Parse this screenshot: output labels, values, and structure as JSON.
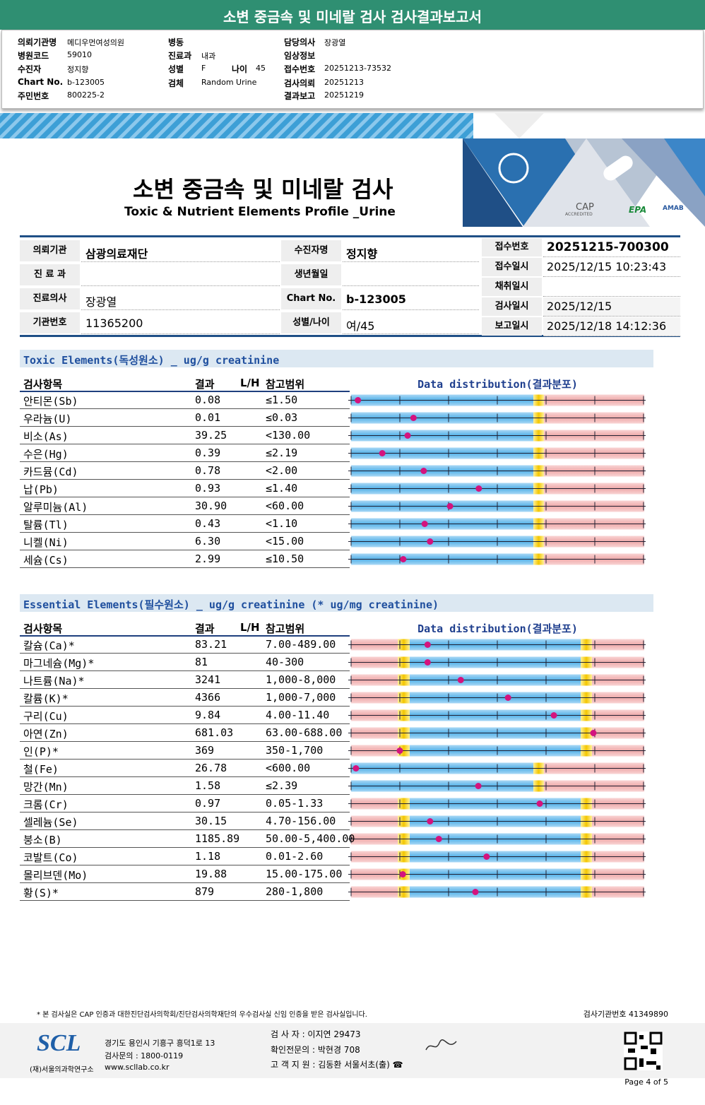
{
  "header": {
    "title": "소변 중금속 및 미네랄 검사 검사결과보고서"
  },
  "patient_info": {
    "columns": [
      [
        {
          "label": "의뢰기관명",
          "value": "메디우먼여성의원"
        },
        {
          "label": "병원코드",
          "value": "59010"
        },
        {
          "label": "수진자",
          "value": "정지향"
        },
        {
          "label": "Chart No.",
          "value": "b-123005"
        },
        {
          "label": "주민번호",
          "value": "800225-2"
        }
      ],
      [
        {
          "label": "병동"
        },
        {
          "label": "진료과",
          "value": "내과"
        },
        {
          "label": "성별",
          "value": "F"
        },
        {
          "label": "검체",
          "value": "Random Urine"
        }
      ],
      [
        {
          "label": "담당의사",
          "value": "장광열"
        },
        {
          "label": "임상정보"
        },
        {
          "label": "접수번호",
          "value": "20251213-73532"
        },
        {
          "label": "검사의뢰",
          "value": "20251213"
        },
        {
          "label": "결과보고",
          "value": "20251219"
        }
      ]
    ],
    "age": {
      "label": "나이",
      "value": "45"
    }
  },
  "report": {
    "title": "소변 중금속 및 미네랄 검사",
    "subtitle": "Toxic & Nutrient Elements Profile _Urine",
    "logos": [
      "CAP",
      "ACCREDITED",
      "EPA",
      "AMAB"
    ]
  },
  "info_table": {
    "left": [
      {
        "label1": "의뢰기관",
        "value1": "삼광의료재단",
        "label2": "수진자명",
        "value2": "정지향"
      },
      {
        "label1": "진 료 과",
        "label2": "생년월일"
      },
      {
        "label1": "진료의사",
        "value1": "장광열",
        "label2": "Chart No.",
        "value2": "b-123005"
      },
      {
        "label1": "기관번호",
        "value1": "11365200",
        "label2": "성별/나이",
        "value2": "여/45"
      }
    ],
    "right": [
      {
        "label": "접수번호",
        "value": "20251215-700300"
      },
      {
        "label": "접수일시",
        "value": "2025/12/15 10:23:43"
      },
      {
        "label": "채취일시"
      },
      {
        "label": "검사일시",
        "value": "2025/12/15"
      },
      {
        "label": "보고일시",
        "value": "2025/12/18 14:12:36"
      }
    ]
  },
  "sections": [
    {
      "title": "Toxic Elements(독성원소) _ ug/g creatinine",
      "columns": [
        "검사항목",
        "결과",
        "L/H",
        "참고범위",
        "Data distribution(결과분포)"
      ],
      "rows": [
        {
          "item": "안티몬(Sb)",
          "result": "0.08",
          "reference": "≤1.50",
          "range_type": "upper",
          "position": 0.14
        },
        {
          "item": "우라늄(U)",
          "result": "0.01",
          "reference": "≤0.03",
          "range_type": "upper",
          "position": 1.28
        },
        {
          "item": "비소(As)",
          "result": "39.25",
          "reference": "<130.00",
          "range_type": "upper",
          "position": 1.16
        },
        {
          "item": "수은(Hg)",
          "result": "0.39",
          "reference": "≤2.19",
          "range_type": "upper",
          "position": 0.64
        },
        {
          "item": "카드뮴(Cd)",
          "result": "0.78",
          "reference": "<2.00",
          "range_type": "upper",
          "position": 1.49
        },
        {
          "item": "납(Pb)",
          "result": "0.93",
          "reference": "≤1.40",
          "range_type": "upper",
          "position": 2.62
        },
        {
          "item": "알루미늄(Al)",
          "result": "30.90",
          "reference": "<60.00",
          "range_type": "upper",
          "position": 2.03
        },
        {
          "item": "탈륨(Tl)",
          "result": "0.43",
          "reference": "<1.10",
          "range_type": "upper",
          "position": 1.51
        },
        {
          "item": "니켈(Ni)",
          "result": "6.30",
          "reference": "<15.00",
          "range_type": "upper",
          "position": 1.62
        },
        {
          "item": "세슘(Cs)",
          "result": "2.99",
          "reference": "≤10.50",
          "range_type": "upper",
          "position": 1.07
        }
      ]
    },
    {
      "title": "Essential Elements(필수원소) _ ug/g creatinine (* ug/mg creatinine)",
      "columns": [
        "검사항목",
        "결과",
        "L/H",
        "참고범위",
        "Data distribution(결과분포)"
      ],
      "rows": [
        {
          "item": "칼슘(Ca)*",
          "result": "83.21",
          "reference": "7.00-489.00",
          "range_type": "range",
          "position": 1.57
        },
        {
          "item": "마그네슘(Mg)*",
          "result": "81",
          "reference": "40-300",
          "range_type": "range",
          "position": 1.57
        },
        {
          "item": "나트륨(Na)*",
          "result": "3241",
          "reference": "1,000-8,000",
          "range_type": "range",
          "position": 2.25
        },
        {
          "item": "칼륨(K)*",
          "result": "4366",
          "reference": "1,000-7,000",
          "range_type": "range",
          "position": 3.22
        },
        {
          "item": "구리(Cu)",
          "result": "9.84",
          "reference": "4.00-11.40",
          "range_type": "range",
          "position": 4.16
        },
        {
          "item": "아연(Zn)",
          "result": "681.03",
          "reference": "63.00-688.00",
          "range_type": "range",
          "position": 4.97
        },
        {
          "item": "인(P)*",
          "result": "369",
          "reference": "350-1,700",
          "range_type": "range",
          "position": 1.0
        },
        {
          "item": "철(Fe)",
          "result": "26.78",
          "reference": "<600.00",
          "range_type": "upper",
          "position": 0.1
        },
        {
          "item": "망간(Mn)",
          "result": "1.58",
          "reference": "≤2.39",
          "range_type": "upper",
          "position": 2.61
        },
        {
          "item": "크롬(Cr)",
          "result": "0.97",
          "reference": "0.05-1.33",
          "range_type": "range",
          "position": 3.87
        },
        {
          "item": "셀레늄(Se)",
          "result": "30.15",
          "reference": "4.70-156.00",
          "range_type": "range",
          "position": 1.62
        },
        {
          "item": "붕소(B)",
          "result": "1185.89",
          "reference": "50.00-5,400.00",
          "range_type": "range",
          "position": 1.8
        },
        {
          "item": "코발트(Co)",
          "result": "1.18",
          "reference": "0.01-2.60",
          "range_type": "range",
          "position": 2.78
        },
        {
          "item": "몰리브덴(Mo)",
          "result": "19.88",
          "reference": "15.00-175.00",
          "range_type": "range",
          "position": 1.06
        },
        {
          "item": "황(S)*",
          "result": "879",
          "reference": "280-1,800",
          "range_type": "range",
          "position": 2.55
        }
      ]
    }
  ],
  "footer": {
    "notice": "* 본 검사실은 CAP 인증과 대한진단검사의학회/진단검사의학재단의 우수검사실 신임 인증을 받은 검사실입니다.",
    "institution_no": "검사기관번호 41349890",
    "logo": "SCL",
    "org": "(재)서울의과학연구소",
    "address": [
      "경기도 용인시 기흥구 흥덕1로 13",
      "검사문의 : 1800-0119",
      "www.scllab.co.kr"
    ],
    "staff": [
      "검 사 자 : 이지연 29473",
      "확인전문의 : 박현경 708",
      "고 객 지 원 : 김동환 서울서초(출) ☎"
    ],
    "page": "Page 4 of 5"
  }
}
